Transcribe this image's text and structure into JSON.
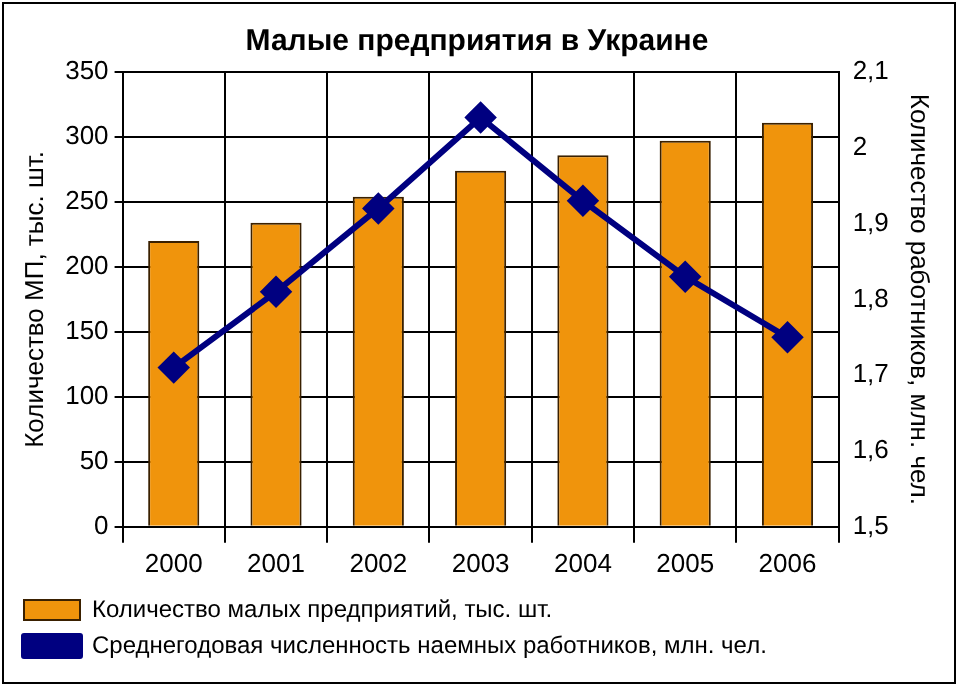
{
  "chart_data": {
    "type": "bar",
    "title": "Малые предприятия в Украине",
    "ylabel": "Количество МП, тыс. шт.",
    "y2label": "Количество работников, млн. чел.",
    "categories": [
      "2000",
      "2001",
      "2002",
      "2003",
      "2004",
      "2005",
      "2006"
    ],
    "series": [
      {
        "name": "Количество малых предприятий, тыс. шт.",
        "color": "#f0940c",
        "values": [
          220,
          234,
          254,
          274,
          286,
          297,
          311
        ]
      },
      {
        "name": "Среднегодовая численность наемных работников, млн. чел.",
        "type": "line",
        "axis": "y2",
        "color": "#000080",
        "marker": "diamond",
        "values": [
          1.71,
          1.81,
          1.92,
          2.04,
          1.93,
          1.83,
          1.75
        ]
      }
    ],
    "ylim": [
      0,
      350
    ],
    "yticks": [
      0,
      50,
      100,
      150,
      200,
      250,
      300,
      350
    ],
    "y2lim": [
      1.5,
      2.1
    ],
    "y2ticks": [
      {
        "value": 1.5,
        "label": "1,5"
      },
      {
        "value": 1.6,
        "label": "1,6"
      },
      {
        "value": 1.7,
        "label": "1,7"
      },
      {
        "value": 1.8,
        "label": "1,8"
      },
      {
        "value": 1.9,
        "label": "1,9"
      },
      {
        "value": 2,
        "label": "2"
      },
      {
        "value": 2.1,
        "label": "2,1"
      }
    ],
    "grid": true,
    "legend": "bottom"
  }
}
